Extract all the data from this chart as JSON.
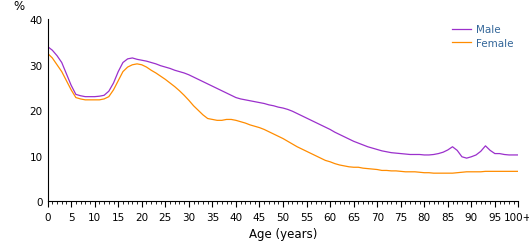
{
  "title": "",
  "xlabel": "Age (years)",
  "ylabel": "%",
  "ylim": [
    0,
    40
  ],
  "yticks": [
    0,
    10,
    20,
    30,
    40
  ],
  "xtick_labels": [
    "0",
    "5",
    "10",
    "15",
    "20",
    "25",
    "30",
    "35",
    "40",
    "45",
    "50",
    "55",
    "60",
    "65",
    "70",
    "75",
    "80",
    "85",
    "90",
    "95",
    "100+"
  ],
  "male_color": "#9B30CC",
  "female_color": "#FF8C00",
  "legend_text_color": "#336699",
  "legend_labels": [
    "Male",
    "Female"
  ],
  "male_data": [
    34.0,
    33.2,
    32.0,
    30.5,
    28.0,
    25.5,
    23.5,
    23.2,
    23.0,
    23.0,
    23.0,
    23.1,
    23.3,
    24.2,
    26.0,
    28.5,
    30.5,
    31.3,
    31.5,
    31.2,
    31.0,
    30.8,
    30.5,
    30.2,
    29.8,
    29.5,
    29.2,
    28.8,
    28.5,
    28.2,
    27.8,
    27.3,
    26.8,
    26.3,
    25.8,
    25.3,
    24.8,
    24.3,
    23.8,
    23.3,
    22.8,
    22.5,
    22.3,
    22.1,
    21.9,
    21.7,
    21.5,
    21.2,
    21.0,
    20.7,
    20.5,
    20.2,
    19.8,
    19.3,
    18.8,
    18.3,
    17.8,
    17.3,
    16.8,
    16.3,
    15.8,
    15.2,
    14.7,
    14.2,
    13.7,
    13.2,
    12.8,
    12.4,
    12.0,
    11.7,
    11.4,
    11.1,
    10.9,
    10.7,
    10.6,
    10.5,
    10.4,
    10.3,
    10.3,
    10.3,
    10.2,
    10.2,
    10.3,
    10.5,
    10.8,
    11.3,
    12.0,
    11.2,
    9.8,
    9.5,
    9.8,
    10.2,
    11.0,
    12.2,
    11.2,
    10.5,
    10.5,
    10.3,
    10.2,
    10.2,
    10.2
  ],
  "female_data": [
    32.5,
    31.5,
    30.0,
    28.5,
    26.5,
    24.5,
    22.8,
    22.5,
    22.3,
    22.3,
    22.3,
    22.3,
    22.5,
    23.0,
    24.5,
    26.5,
    28.5,
    29.5,
    30.0,
    30.2,
    30.0,
    29.5,
    28.8,
    28.2,
    27.5,
    26.8,
    26.0,
    25.2,
    24.3,
    23.3,
    22.2,
    21.0,
    20.0,
    19.0,
    18.2,
    18.0,
    17.8,
    17.8,
    18.0,
    18.0,
    17.8,
    17.5,
    17.2,
    16.8,
    16.5,
    16.2,
    15.8,
    15.3,
    14.8,
    14.3,
    13.8,
    13.2,
    12.6,
    12.0,
    11.5,
    11.0,
    10.5,
    10.0,
    9.5,
    9.0,
    8.7,
    8.3,
    8.0,
    7.8,
    7.6,
    7.5,
    7.5,
    7.3,
    7.2,
    7.1,
    7.0,
    6.8,
    6.8,
    6.7,
    6.7,
    6.6,
    6.5,
    6.5,
    6.5,
    6.4,
    6.3,
    6.3,
    6.2,
    6.2,
    6.2,
    6.2,
    6.2,
    6.3,
    6.4,
    6.5,
    6.5,
    6.5,
    6.5,
    6.6,
    6.6,
    6.6,
    6.6,
    6.6,
    6.6,
    6.6,
    6.6
  ]
}
